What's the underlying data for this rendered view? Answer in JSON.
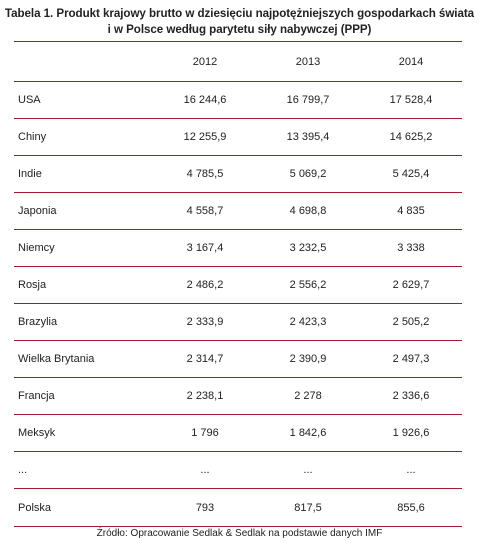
{
  "title": {
    "line1": "Tabela 1. Produkt krajowy brutto w dziesięciu najpotężniejszych gospodarkach świata",
    "line2": "i w Polsce według parytetu siły nabywczej (PPP)"
  },
  "table": {
    "headers": [
      "",
      "2012",
      "2013",
      "2014"
    ],
    "rows": [
      {
        "name": "USA",
        "v2012": "16 244,6",
        "v2013": "16 799,7",
        "v2014": "17 528,4"
      },
      {
        "name": "Chiny",
        "v2012": "12 255,9",
        "v2013": "13 395,4",
        "v2014": "14 625,2"
      },
      {
        "name": "Indie",
        "v2012": "4 785,5",
        "v2013": "5 069,2",
        "v2014": "5 425,4"
      },
      {
        "name": "Japonia",
        "v2012": "4 558,7",
        "v2013": "4 698,8",
        "v2014": "4 835"
      },
      {
        "name": "Niemcy",
        "v2012": "3 167,4",
        "v2013": "3 232,5",
        "v2014": "3 338"
      },
      {
        "name": "Rosja",
        "v2012": "2 486,2",
        "v2013": "2 556,2",
        "v2014": "2 629,7"
      },
      {
        "name": "Brazylia",
        "v2012": "2 333,9",
        "v2013": "2 423,3",
        "v2014": "2 505,2"
      },
      {
        "name": "Wielka Brytania",
        "v2012": "2 314,7",
        "v2013": "2 390,9",
        "v2014": "2 497,3"
      },
      {
        "name": "Francja",
        "v2012": "2 238,1",
        "v2013": "2 278",
        "v2014": "2 336,6"
      },
      {
        "name": "Meksyk",
        "v2012": "1 796",
        "v2013": "1 842,6",
        "v2014": "1 926,6"
      },
      {
        "name": "...",
        "v2012": "...",
        "v2013": "...",
        "v2014": "..."
      },
      {
        "name": "Polska",
        "v2012": "793",
        "v2013": "817,5",
        "v2014": "855,6"
      }
    ]
  },
  "source": "Źródło: Opracowanie Sedlak & Sedlak na podstawie danych IMF",
  "colors": {
    "rule": "#a6192e",
    "text": "#222222"
  }
}
